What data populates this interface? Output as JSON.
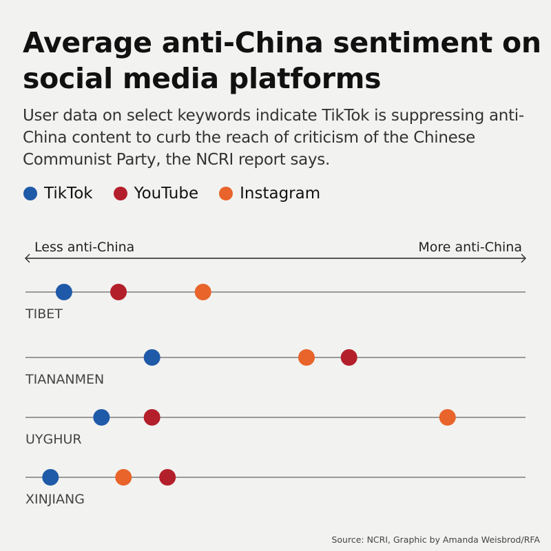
{
  "title": "Average anti-China sentiment on social media platforms",
  "subtitle": "User data on select keywords indicate TikTok is suppressing anti-China content to curb the reach of criticism of the Chinese Communist Party, the NCRI report says.",
  "source": "Source: NCRI, Graphic by Amanda Weisbrod/RFA",
  "chart_data": {
    "type": "scatter",
    "axis": {
      "left_label": "Less anti-China",
      "right_label": "More anti-China",
      "range": [
        0,
        100
      ],
      "tick_labels": false
    },
    "categories": [
      "TIBET",
      "TIANANMEN",
      "UYGHUR",
      "XINJIANG"
    ],
    "series": [
      {
        "name": "TikTok",
        "color": "#1f5aa8",
        "values": [
          7.7,
          25.3,
          15.2,
          5.0
        ]
      },
      {
        "name": "YouTube",
        "color": "#b31f2a",
        "values": [
          18.6,
          64.7,
          25.3,
          28.4
        ]
      },
      {
        "name": "Instagram",
        "color": "#e8642a",
        "values": [
          35.5,
          56.2,
          84.4,
          19.6
        ]
      }
    ],
    "legend_placement": "top-left",
    "grid": false
  }
}
